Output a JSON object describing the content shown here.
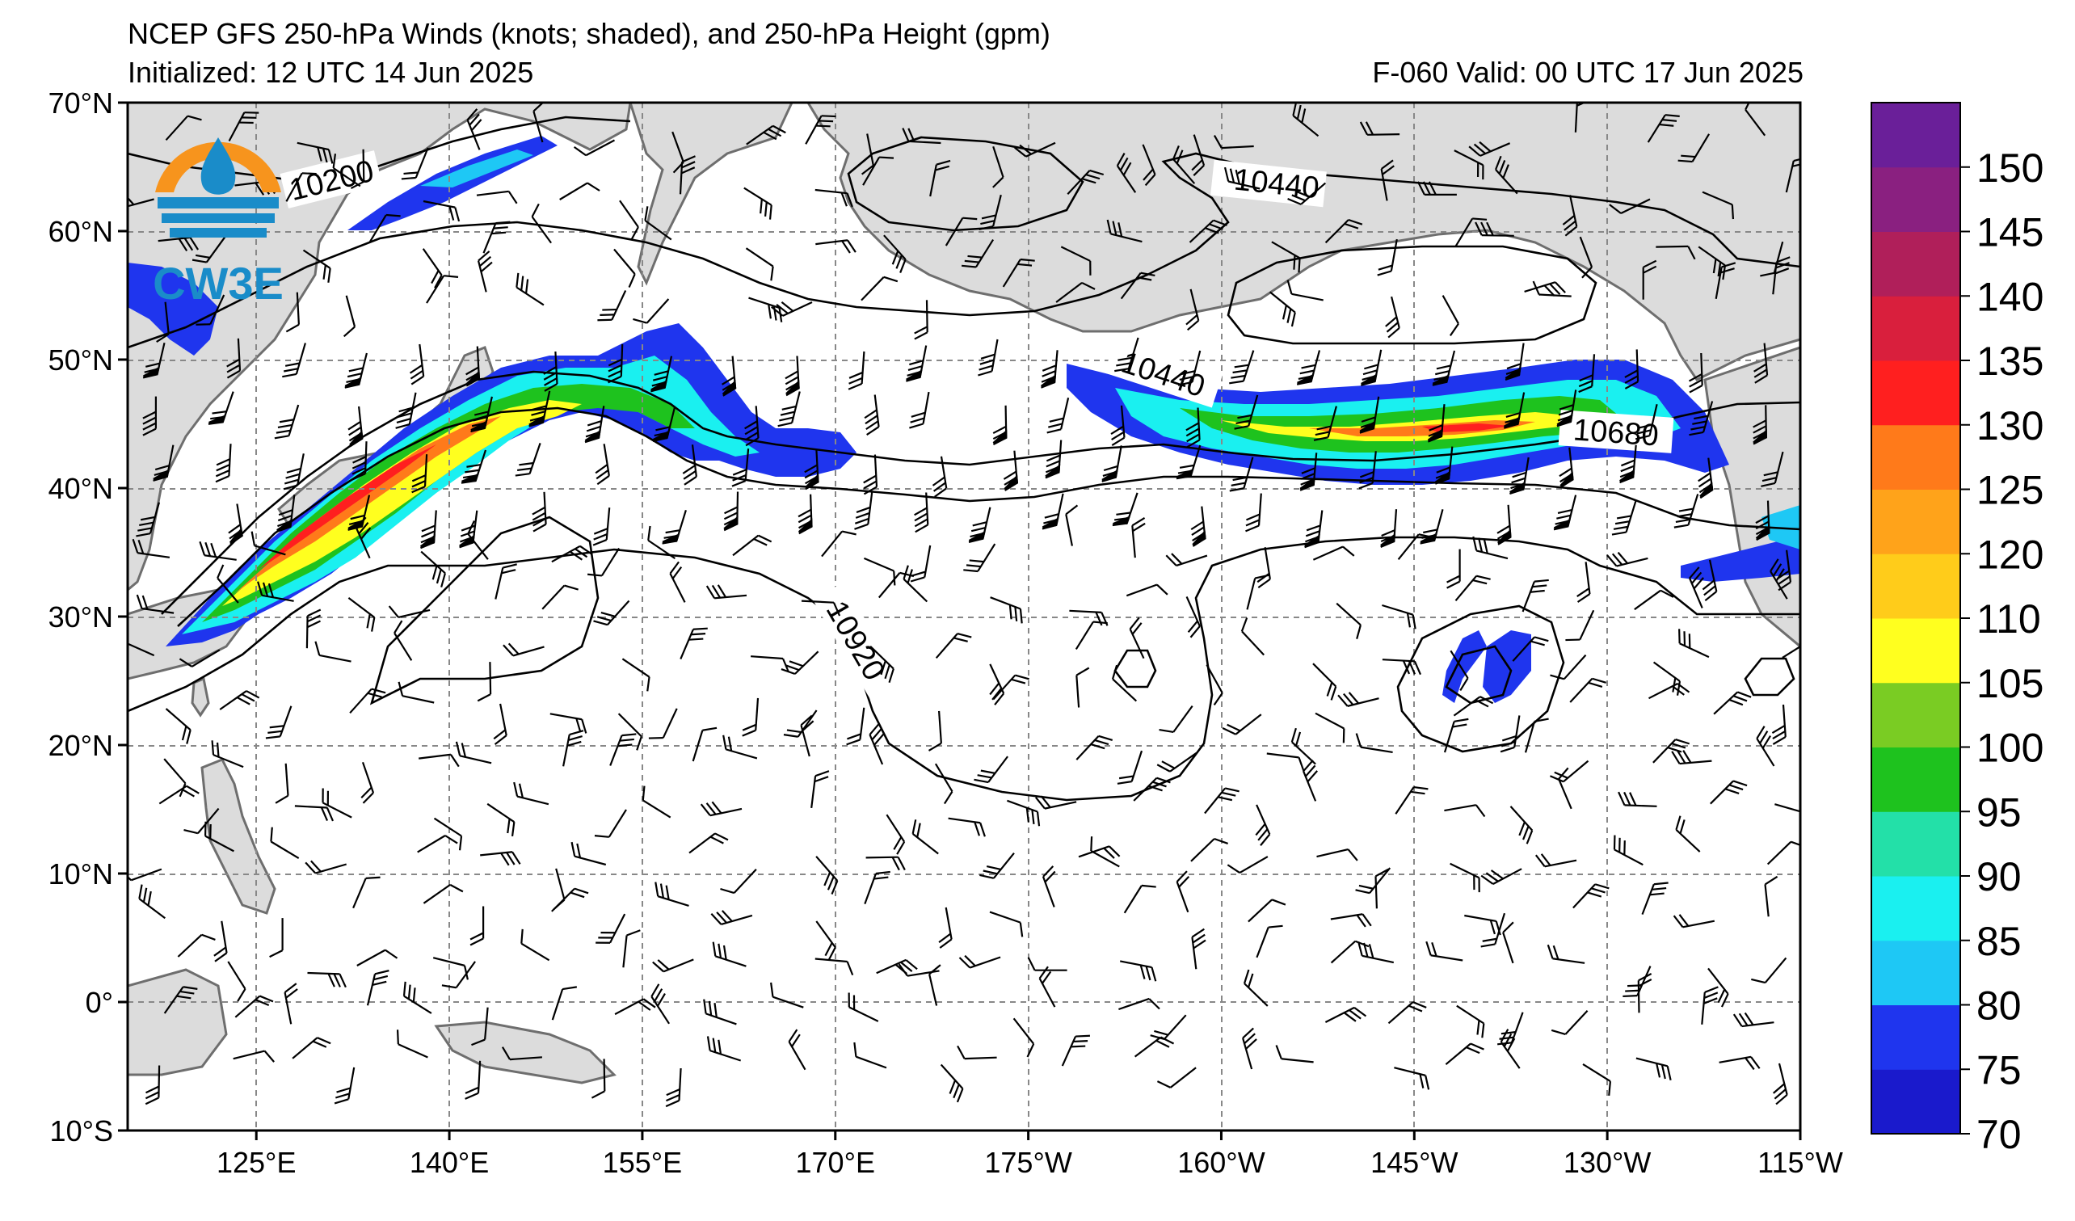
{
  "header": {
    "title": "NCEP GFS 250-hPa Winds (knots; shaded), and 250-hPa Height (gpm)",
    "initialized": "Initialized: 12 UTC 14 Jun 2025",
    "valid": "F-060  Valid: 00 UTC 17 Jun 2025"
  },
  "map": {
    "projection": "cylindrical equidistant",
    "lon_range": [
      115,
      245
    ],
    "lat_range": [
      -10,
      70
    ],
    "lat_ticks": [
      {
        "value": 70,
        "label": "70°N"
      },
      {
        "value": 60,
        "label": "60°N"
      },
      {
        "value": 50,
        "label": "50°N"
      },
      {
        "value": 40,
        "label": "40°N"
      },
      {
        "value": 30,
        "label": "30°N"
      },
      {
        "value": 20,
        "label": "20°N"
      },
      {
        "value": 10,
        "label": "10°N"
      },
      {
        "value": 0,
        "label": "0°"
      },
      {
        "value": -10,
        "label": "10°S"
      }
    ],
    "lon_ticks": [
      {
        "value": 125,
        "label": "125°E"
      },
      {
        "value": 140,
        "label": "140°E"
      },
      {
        "value": 155,
        "label": "155°E"
      },
      {
        "value": 170,
        "label": "170°E"
      },
      {
        "value": 185,
        "label": "175°W"
      },
      {
        "value": 200,
        "label": "160°W"
      },
      {
        "value": 215,
        "label": "145°W"
      },
      {
        "value": 230,
        "label": "130°W"
      },
      {
        "value": 245,
        "label": "115°W"
      }
    ],
    "grid": true,
    "land_color": "#dcdcdc",
    "ocean_color": "#ffffff",
    "height_contour_labels": [
      {
        "text": "10200",
        "lon": 130,
        "lat": 64
      },
      {
        "text": "10440",
        "lon": 205,
        "lat": 63.5
      },
      {
        "text": "10440",
        "lon": 183,
        "lat": 48.5
      },
      {
        "text": "10680",
        "lon": 231,
        "lat": 44.5
      },
      {
        "text": "10920",
        "lon": 170,
        "lat": 31
      }
    ]
  },
  "logo": {
    "text": "CW3E",
    "colors": {
      "orange": "#f7941d",
      "blue": "#1a8cc9"
    }
  },
  "colorbar": {
    "levels": [
      70,
      75,
      80,
      85,
      90,
      95,
      100,
      105,
      110,
      120,
      125,
      130,
      135,
      140,
      145,
      150
    ],
    "labels": [
      "70",
      "75",
      "80",
      "85",
      "90",
      "95",
      "100",
      "105",
      "110",
      "120",
      "125",
      "130",
      "135",
      "140",
      "145",
      "150"
    ],
    "colors": [
      "#1a1acc",
      "#1f35ee",
      "#1ec8f5",
      "#1af0f0",
      "#23e0a8",
      "#1ec21e",
      "#7acc23",
      "#ffff1f",
      "#ffcc1a",
      "#ffa31a",
      "#ff7a1a",
      "#ff1f1f",
      "#d91f3d",
      "#b01f5a",
      "#8a2080",
      "#6a1f99"
    ]
  },
  "colors": {
    "contour": "#000000",
    "coastline": "#6e6e6e",
    "gridline": "#888888"
  }
}
